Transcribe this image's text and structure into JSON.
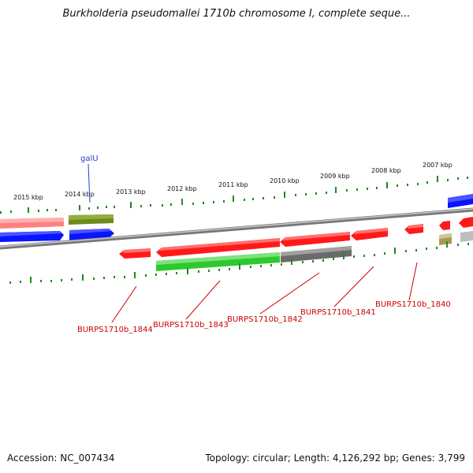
{
  "title": "Burkholderia pseudomallei 1710b chromosome I, complete seque...",
  "footer": {
    "accession": "Accession: NC_007434",
    "summary": "Topology: circular; Length: 4,126,292 bp; Genes: 3,799"
  },
  "ruler": {
    "labels": [
      "2015 kbp",
      "2014 kbp",
      "2013 kbp",
      "2012 kbp",
      "2011 kbp",
      "2010 kbp",
      "2009 kbp",
      "2008 kbp",
      "2007 kbp"
    ]
  },
  "gene_names": {
    "galU": "galU"
  },
  "locus_tags": [
    "BURPS1710b_1844",
    "BURPS1710b_1843",
    "BURPS1710b_1842",
    "BURPS1710b_1841",
    "BURPS1710b_1840"
  ],
  "colors": {
    "red_gene": "#ff1a1a",
    "blue_gene": "#0a14ff",
    "green_gene": "#2ec92e",
    "olive_gene": "#6e8a1e",
    "pink_gene": "#ff8080",
    "gray_gene": "#6a6a6a",
    "tan_gene": "#a69a55",
    "tick_green": "#1f8a1f",
    "label_red": "#cc0000",
    "label_blue": "#2a3cc8"
  }
}
